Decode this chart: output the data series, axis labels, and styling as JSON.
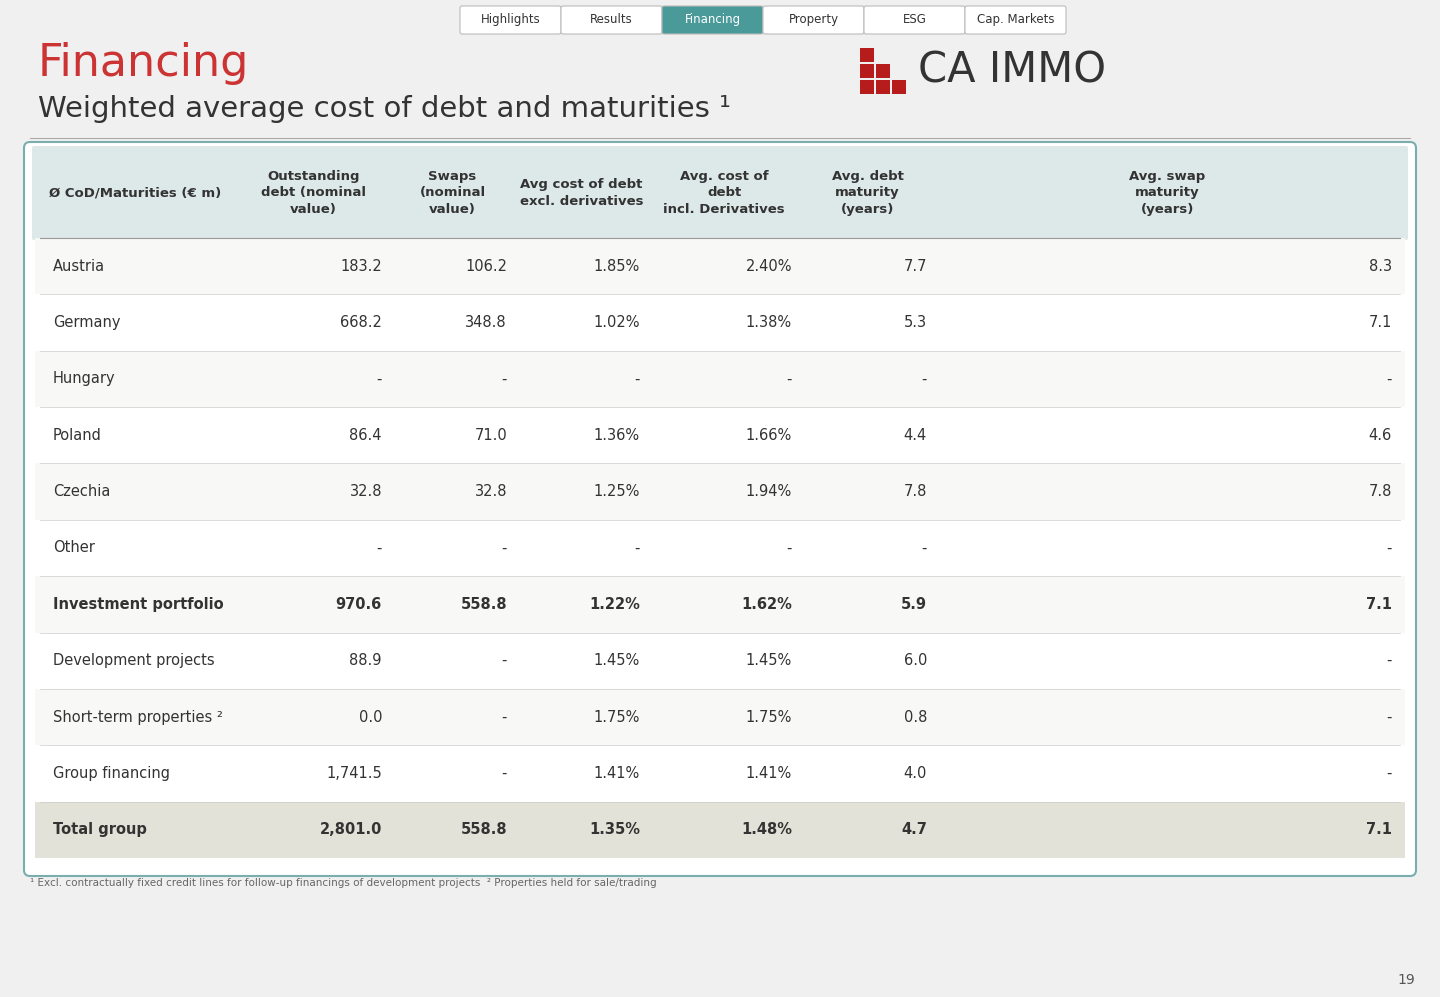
{
  "page_title": "Financing",
  "page_subtitle": "Weighted average cost of debt and maturities ¹",
  "nav_buttons": [
    "Highlights",
    "Results",
    "Financing",
    "Property",
    "ESG",
    "Cap. Markets"
  ],
  "nav_active": "Financing",
  "nav_active_bg": "#4a9a9a",
  "nav_inactive_bg": "#ffffff",
  "nav_border_color": "#bbbbbb",
  "nav_active_text": "#ffffff",
  "nav_inactive_text": "#333333",
  "logo_text": "CA IMMO",
  "logo_color": "#333333",
  "logo_red": "#b71c1c",
  "col_headers": [
    "Ø CoD/Maturities (€ m)",
    "Outstanding\ndebt (nominal\nvalue)",
    "Swaps\n(nominal\nvalue)",
    "Avg cost of debt\nexcl. derivatives",
    "Avg. cost of\ndebt\nincl. Derivatives",
    "Avg. debt\nmaturity\n(years)",
    "Avg. swap\nmaturity\n(years)"
  ],
  "rows": [
    {
      "label": "Austria",
      "bold": false,
      "shaded": false,
      "values": [
        "183.2",
        "106.2",
        "1.85%",
        "2.40%",
        "7.7",
        "8.3"
      ]
    },
    {
      "label": "Germany",
      "bold": false,
      "shaded": false,
      "values": [
        "668.2",
        "348.8",
        "1.02%",
        "1.38%",
        "5.3",
        "7.1"
      ]
    },
    {
      "label": "Hungary",
      "bold": false,
      "shaded": false,
      "values": [
        "-",
        "-",
        "-",
        "-",
        "-",
        "-"
      ]
    },
    {
      "label": "Poland",
      "bold": false,
      "shaded": false,
      "values": [
        "86.4",
        "71.0",
        "1.36%",
        "1.66%",
        "4.4",
        "4.6"
      ]
    },
    {
      "label": "Czechia",
      "bold": false,
      "shaded": false,
      "values": [
        "32.8",
        "32.8",
        "1.25%",
        "1.94%",
        "7.8",
        "7.8"
      ]
    },
    {
      "label": "Other",
      "bold": false,
      "shaded": false,
      "values": [
        "-",
        "-",
        "-",
        "-",
        "-",
        "-"
      ]
    },
    {
      "label": "Investment portfolio",
      "bold": true,
      "shaded": false,
      "values": [
        "970.6",
        "558.8",
        "1.22%",
        "1.62%",
        "5.9",
        "7.1"
      ]
    },
    {
      "label": "Development projects",
      "bold": false,
      "shaded": false,
      "values": [
        "88.9",
        "-",
        "1.45%",
        "1.45%",
        "6.0",
        "-"
      ]
    },
    {
      "label": "Short-term properties ²",
      "bold": false,
      "shaded": false,
      "values": [
        "0.0",
        "-",
        "1.75%",
        "1.75%",
        "0.8",
        "-"
      ]
    },
    {
      "label": "Group financing",
      "bold": false,
      "shaded": false,
      "values": [
        "1,741.5",
        "-",
        "1.41%",
        "1.41%",
        "4.0",
        "-"
      ]
    },
    {
      "label": "Total group",
      "bold": true,
      "shaded": true,
      "values": [
        "2,801.0",
        "558.8",
        "1.35%",
        "1.48%",
        "4.7",
        "7.1"
      ]
    }
  ],
  "footer_note": "¹ Excl. contractually fixed credit lines for follow-up financings of development projects  ² Properties held for sale/trading",
  "page_number": "19",
  "bg_color": "#f0f0f0",
  "table_bg": "#ffffff",
  "table_border_color": "#7aadad",
  "header_bg": "#dde8e8",
  "shaded_bg": "#e2e2d8",
  "title_color": "#cc3333",
  "text_color": "#333333",
  "sep_line_color": "#cccccc",
  "header_sep_color": "#999999"
}
